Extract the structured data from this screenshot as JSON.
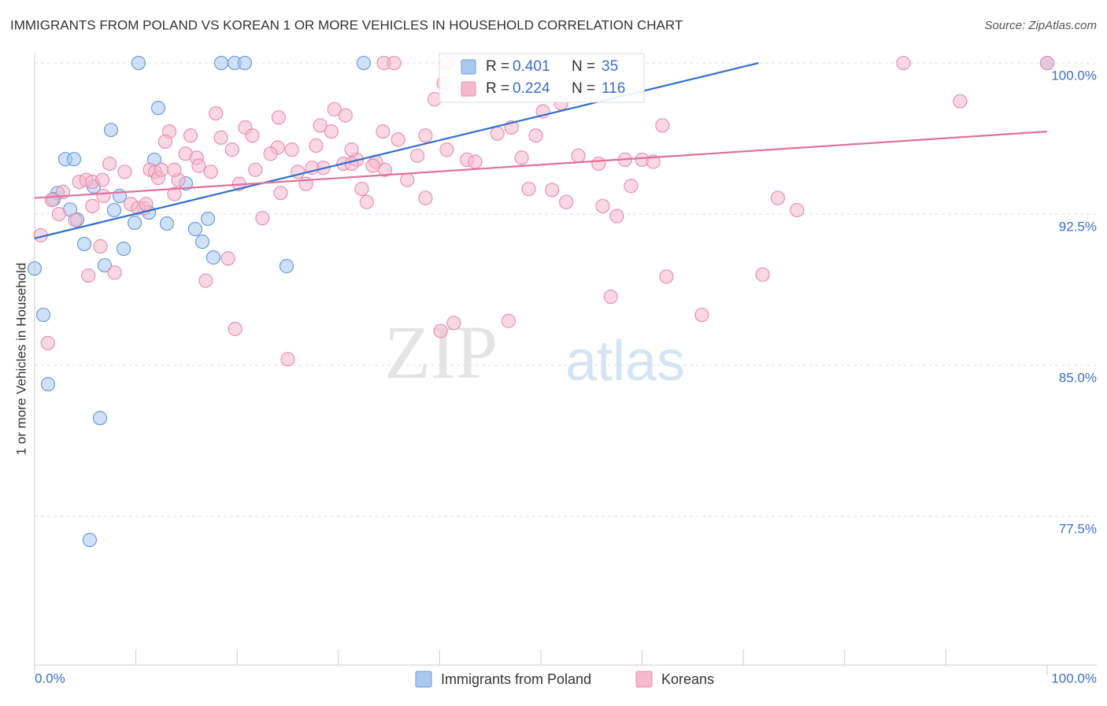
{
  "chart_data": {
    "type": "scatter",
    "title": "IMMIGRANTS FROM POLAND VS KOREAN 1 OR MORE VEHICLES IN HOUSEHOLD CORRELATION CHART",
    "source": "Source: ZipAtlas.com",
    "watermark": [
      "ZIP",
      "atlas"
    ],
    "ylabel": "1 or more Vehicles in Household",
    "xlim": [
      0,
      104.9
    ],
    "ylim": [
      70.12,
      100.51
    ],
    "xticks": [
      {
        "value": 0,
        "label": "0.0%"
      },
      {
        "value": 100,
        "label": "100.0%"
      }
    ],
    "xminor_ticks": [
      10,
      20,
      30,
      40,
      50,
      60,
      70,
      80,
      90
    ],
    "yticks": [
      {
        "value": 100,
        "label": "100.0%"
      },
      {
        "value": 92.5,
        "label": "92.5%"
      },
      {
        "value": 85,
        "label": "85.0%"
      },
      {
        "value": 77.5,
        "label": "77.5%"
      }
    ],
    "grid": true,
    "stat_labels": {
      "r": "R =",
      "n": "N ="
    },
    "series": [
      {
        "name": "Immigrants from Poland",
        "color": "#a8c8f0",
        "stroke": "#6b9be0",
        "line_color": "#2f6fd0",
        "r": 0.401,
        "n": 35,
        "trend": {
          "x": [
            0,
            71.5
          ],
          "y": [
            91.3,
            100
          ]
        },
        "x": [
          10.26,
          18.43,
          19.75,
          20.76,
          32.5,
          100,
          12.21,
          7.54,
          3.03,
          3.89,
          11.82,
          5.83,
          14.93,
          2.26,
          8.4,
          1.87,
          3.5,
          7.85,
          4.2,
          11.28,
          9.88,
          13.06,
          17.11,
          15.86,
          4.9,
          8.79,
          16.56,
          17.65,
          6.92,
          24.88,
          0,
          0.86,
          1.32,
          6.45,
          5.44
        ],
        "values": [
          100,
          100,
          100,
          100,
          100,
          100,
          97.77,
          96.68,
          95.23,
          95.23,
          95.2,
          93.87,
          94.02,
          93.55,
          93.4,
          93.24,
          92.73,
          92.7,
          92.23,
          92.58,
          92.07,
          92.03,
          92.27,
          91.76,
          91.02,
          90.78,
          91.13,
          90.35,
          89.96,
          89.92,
          89.8,
          87.5,
          84.06,
          82.38,
          76.33
        ]
      },
      {
        "name": "Koreans",
        "color": "#f5b8cc",
        "stroke": "#e890b0",
        "line_color": "#e0709a",
        "r": 0.224,
        "n": 116,
        "trend": {
          "x": [
            0,
            100
          ],
          "y": [
            93.3,
            96.6
          ]
        },
        "x": [
          34.5,
          35.5,
          40.7,
          85.8,
          100,
          40.4,
          42.3,
          54.4,
          39.5,
          52.0,
          91.4,
          29.6,
          17.9,
          30.7,
          24.1,
          50.2,
          28.2,
          20.8,
          13.3,
          62.0,
          34.4,
          38.6,
          29.3,
          47.1,
          45.7,
          49.5,
          21.5,
          35.9,
          15.4,
          12.9,
          18.4,
          27.8,
          19.5,
          24.0,
          25.4,
          23.3,
          14.9,
          16.0,
          37.8,
          31.8,
          48.1,
          42.7,
          53.7,
          60.0,
          7.4,
          28.5,
          30.5,
          31.3,
          33.7,
          43.5,
          55.7,
          58.3,
          61.1,
          16.2,
          17.4,
          21.8,
          26.0,
          27.4,
          34.6,
          33.4,
          8.9,
          11.4,
          11.9,
          12.2,
          14.2,
          4.4,
          5.1,
          5.7,
          20.2,
          26.8,
          32.3,
          36.8,
          48.8,
          51.1,
          58.9,
          2.8,
          6.8,
          13.8,
          38.6,
          32.8,
          52.5,
          73.4,
          56.1,
          1.7,
          5.7,
          9.5,
          10.8,
          10.2,
          2.4,
          4.0,
          22.5,
          57.5,
          75.3,
          0.6,
          6.5,
          19.1,
          5.3,
          7.9,
          16.9,
          62.4,
          71.9,
          56.9,
          65.9,
          41.4,
          46.8,
          40.1,
          19.8,
          1.3,
          25.0,
          13.8,
          12.5,
          40.7,
          6.7,
          11.0,
          31.3,
          24.3
        ],
        "values": [
          100,
          100,
          100,
          100,
          100,
          99.0,
          98.6,
          98.8,
          98.2,
          98.0,
          98.1,
          97.7,
          97.5,
          97.4,
          97.3,
          97.6,
          96.9,
          96.8,
          96.6,
          96.9,
          96.6,
          96.4,
          96.6,
          96.8,
          96.5,
          96.4,
          96.4,
          96.2,
          96.4,
          96.1,
          96.3,
          95.9,
          95.7,
          95.8,
          95.7,
          95.5,
          95.5,
          95.3,
          95.4,
          95.2,
          95.3,
          95.2,
          95.4,
          95.2,
          95.0,
          94.8,
          95.0,
          95.0,
          95.1,
          95.1,
          95.0,
          95.2,
          95.1,
          94.9,
          94.6,
          94.7,
          94.6,
          94.8,
          94.7,
          94.9,
          94.6,
          94.7,
          94.6,
          94.3,
          94.2,
          94.1,
          94.2,
          94.1,
          94.0,
          94.0,
          93.75,
          94.2,
          93.75,
          93.7,
          93.9,
          93.6,
          93.4,
          93.5,
          93.3,
          93.1,
          93.1,
          93.3,
          92.9,
          93.2,
          92.9,
          93.0,
          92.8,
          92.8,
          92.5,
          92.2,
          92.3,
          92.4,
          92.7,
          91.45,
          90.9,
          90.3,
          89.45,
          89.6,
          89.2,
          89.4,
          89.5,
          88.4,
          87.5,
          87.1,
          87.2,
          86.7,
          86.8,
          86.1,
          85.3,
          94.7,
          94.7,
          95.7,
          94.2,
          93.0,
          95.7,
          93.55
        ]
      }
    ]
  }
}
